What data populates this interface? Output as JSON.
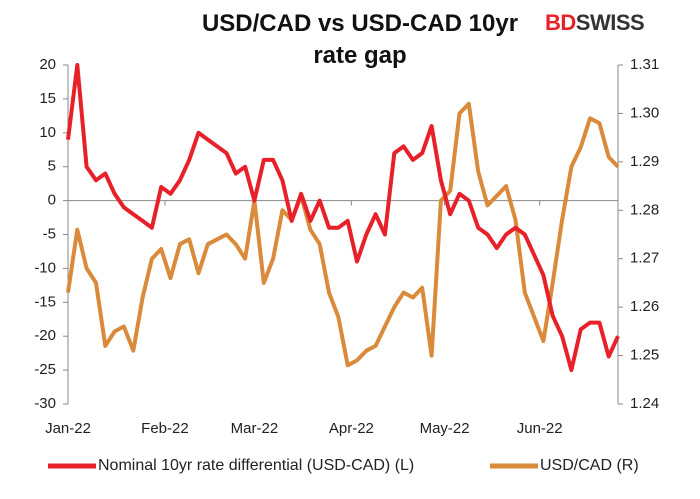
{
  "logo": {
    "part1": "BD",
    "part2": "SWISS"
  },
  "chart_data": {
    "type": "line",
    "title": "USD/CAD vs USD-CAD 10yr rate gap",
    "xlim": [
      0,
      59
    ],
    "xticks": [
      {
        "value": 0,
        "label": "Jan-22"
      },
      {
        "value": 10.4,
        "label": "Feb-22"
      },
      {
        "value": 20,
        "label": "Mar-22"
      },
      {
        "value": 30.4,
        "label": "Apr-22"
      },
      {
        "value": 40.4,
        "label": "May-22"
      },
      {
        "value": 50.6,
        "label": "Jun-22"
      }
    ],
    "ylim": [
      -30,
      20
    ],
    "yticks": [
      -30,
      -25,
      -20,
      -15,
      -10,
      -5,
      0,
      5,
      10,
      15,
      20
    ],
    "y2lim": [
      1.24,
      1.31
    ],
    "y2ticks": [
      1.24,
      1.25,
      1.26,
      1.27,
      1.28,
      1.29,
      {
        "value": 1.3,
        "label": "1.30"
      },
      1.31
    ],
    "legend": "bottom",
    "series": [
      {
        "name": "Nominal 10yr rate differential (USD-CAD) (L)",
        "color": "#e8202a",
        "values": [
          9,
          20,
          5,
          3,
          4,
          1,
          -1,
          -2,
          -3,
          -4,
          2,
          1,
          3,
          6,
          10,
          9,
          8,
          7,
          4,
          5,
          0,
          6,
          6,
          3,
          -3,
          1,
          -3,
          0,
          -4,
          -4,
          -3,
          -9,
          -5,
          -2,
          -5,
          7,
          8,
          6,
          7,
          11,
          3,
          -2,
          1,
          0,
          -4,
          -5,
          -7,
          -5,
          -4,
          -5,
          -8,
          -11,
          -17,
          -20,
          -25,
          -19,
          -18,
          -18,
          -23,
          -20
        ]
      },
      {
        "name": "USD/CAD (R)",
        "color": "#d98a3a",
        "axis": "y2",
        "values": [
          1.263,
          1.276,
          1.268,
          1.265,
          1.252,
          1.255,
          1.256,
          1.251,
          1.262,
          1.27,
          1.272,
          1.266,
          1.273,
          1.274,
          1.267,
          1.273,
          1.274,
          1.275,
          1.273,
          1.27,
          1.282,
          1.265,
          1.27,
          1.28,
          1.278,
          1.283,
          1.276,
          1.273,
          1.263,
          1.258,
          1.248,
          1.249,
          1.251,
          1.252,
          1.256,
          1.26,
          1.263,
          1.262,
          1.264,
          1.25,
          1.282,
          1.284,
          1.3,
          1.302,
          1.288,
          1.281,
          1.283,
          1.285,
          1.278,
          1.263,
          1.258,
          1.253,
          1.265,
          1.278,
          1.289,
          1.293,
          1.299,
          1.298,
          1.291,
          1.289
        ]
      }
    ]
  }
}
